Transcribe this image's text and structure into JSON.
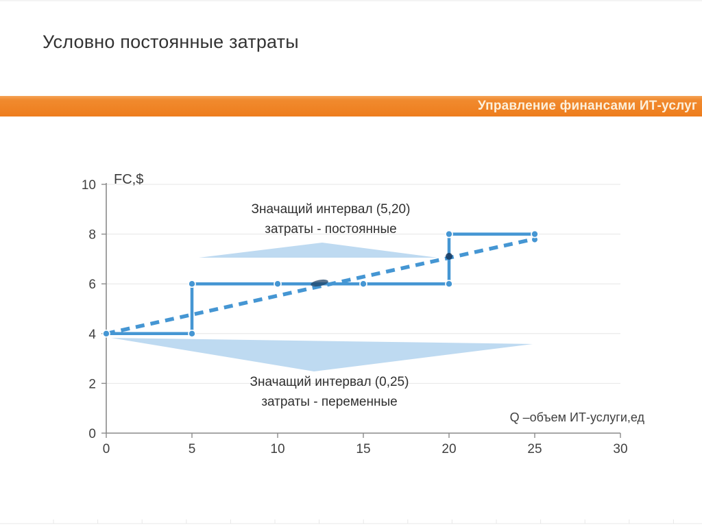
{
  "slide": {
    "title": "Условно постоянные затраты",
    "banner": {
      "text": "Управление финансами ИТ-услуг",
      "color": "#EE7D1D"
    }
  },
  "chart_data": {
    "type": "line",
    "title": "Условно постоянные затраты",
    "y_axis_label": "FC,$",
    "x_axis_label": "Q –объем ИТ-услуги,ед",
    "xlim": [
      0,
      30
    ],
    "ylim": [
      0,
      10
    ],
    "x_ticks": [
      0,
      5,
      10,
      15,
      20,
      25,
      30
    ],
    "y_ticks": [
      0,
      2,
      4,
      6,
      8,
      10
    ],
    "grid": "horizontal-faint",
    "line_color": "#4596D3",
    "callout_color": "#BAD8F0",
    "series": [
      {
        "name": "step-fixed-costs",
        "style": "solid-step",
        "color": "#4596D3",
        "points": [
          [
            0,
            4
          ],
          [
            5,
            4
          ],
          [
            5,
            6
          ],
          [
            20,
            6
          ],
          [
            20,
            8
          ],
          [
            25,
            8
          ]
        ],
        "markers": [
          [
            0,
            4
          ],
          [
            5,
            4
          ],
          [
            5,
            6
          ],
          [
            10,
            6
          ],
          [
            15,
            6
          ],
          [
            20,
            6
          ],
          [
            20,
            8
          ],
          [
            25,
            8
          ]
        ]
      },
      {
        "name": "variable-trend",
        "style": "dashed",
        "color": "#4596D3",
        "points": [
          [
            0,
            4
          ],
          [
            25,
            8
          ]
        ]
      }
    ],
    "annotations": [
      {
        "id": "top",
        "lines": [
          "Значащий интервал (5,20)",
          "затраты - постоянные"
        ]
      },
      {
        "id": "bottom",
        "lines": [
          "Значащий интервал (0,25)",
          "затраты - переменные"
        ]
      }
    ]
  }
}
